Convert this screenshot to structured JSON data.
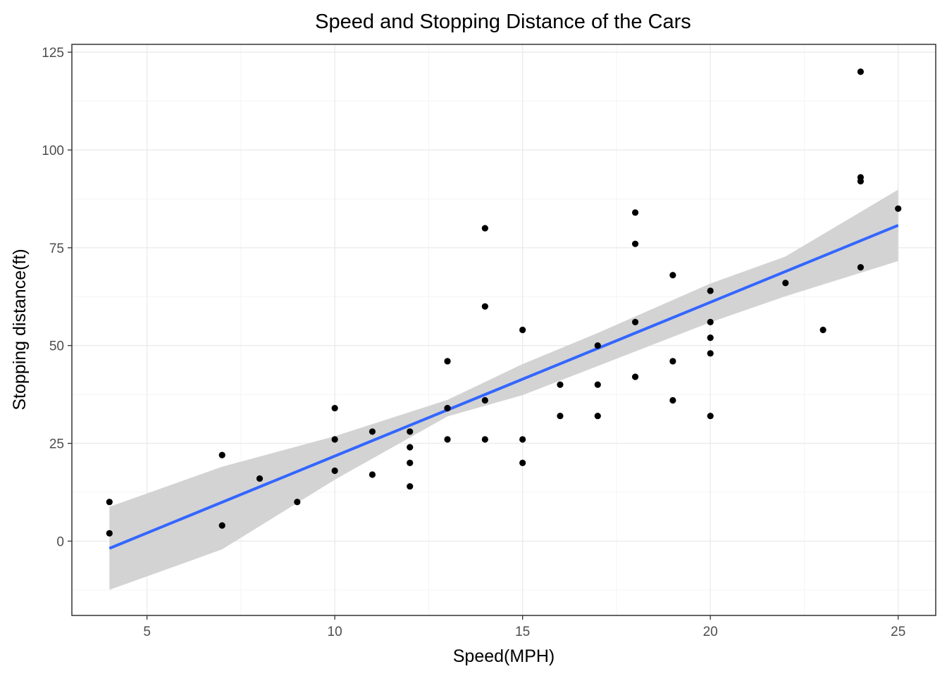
{
  "chart_data": {
    "type": "scatter",
    "title": "Speed and Stopping Distance of the Cars",
    "xlabel": "Speed(MPH)",
    "ylabel": "Stopping distance(ft)",
    "xlim": [
      3,
      26
    ],
    "ylim": [
      -19,
      127
    ],
    "x_ticks": [
      5,
      10,
      15,
      20,
      25
    ],
    "x_tick_labels": [
      "5",
      "10",
      "15",
      "20",
      "25"
    ],
    "y_ticks": [
      0,
      25,
      50,
      75,
      100,
      125
    ],
    "y_tick_labels": [
      "0",
      "25",
      "50",
      "75",
      "100",
      "125"
    ],
    "grid": true,
    "theme": "bw",
    "points": {
      "x": [
        4,
        4,
        7,
        7,
        8,
        9,
        10,
        10,
        10,
        11,
        11,
        12,
        12,
        12,
        12,
        13,
        13,
        13,
        13,
        14,
        14,
        14,
        14,
        15,
        15,
        15,
        16,
        16,
        17,
        17,
        17,
        18,
        18,
        18,
        18,
        19,
        19,
        19,
        20,
        20,
        20,
        20,
        20,
        22,
        23,
        24,
        24,
        24,
        24,
        25
      ],
      "y": [
        2,
        10,
        4,
        22,
        16,
        10,
        18,
        26,
        34,
        17,
        28,
        14,
        20,
        24,
        28,
        26,
        34,
        34,
        46,
        26,
        36,
        60,
        80,
        20,
        26,
        54,
        32,
        40,
        32,
        40,
        50,
        42,
        56,
        76,
        84,
        36,
        46,
        68,
        32,
        48,
        52,
        56,
        64,
        66,
        54,
        70,
        92,
        93,
        120,
        85
      ],
      "color": "#000000"
    },
    "fit": {
      "method": "lm",
      "x": [
        4,
        25
      ],
      "y": [
        -1.849,
        80.732
      ],
      "color": "#3366FF",
      "ci_band": {
        "x": [
          4,
          7,
          10,
          13,
          15,
          17,
          20,
          22,
          25
        ],
        "lower": [
          -12.46,
          -2.11,
          15.71,
          31.87,
          37.32,
          44.76,
          55.93,
          62.6,
          71.6
        ],
        "upper": [
          8.76,
          19.02,
          26.82,
          36.11,
          45.26,
          53.22,
          65.85,
          72.77,
          89.86
        ],
        "color": "#d3d3d3"
      }
    }
  }
}
